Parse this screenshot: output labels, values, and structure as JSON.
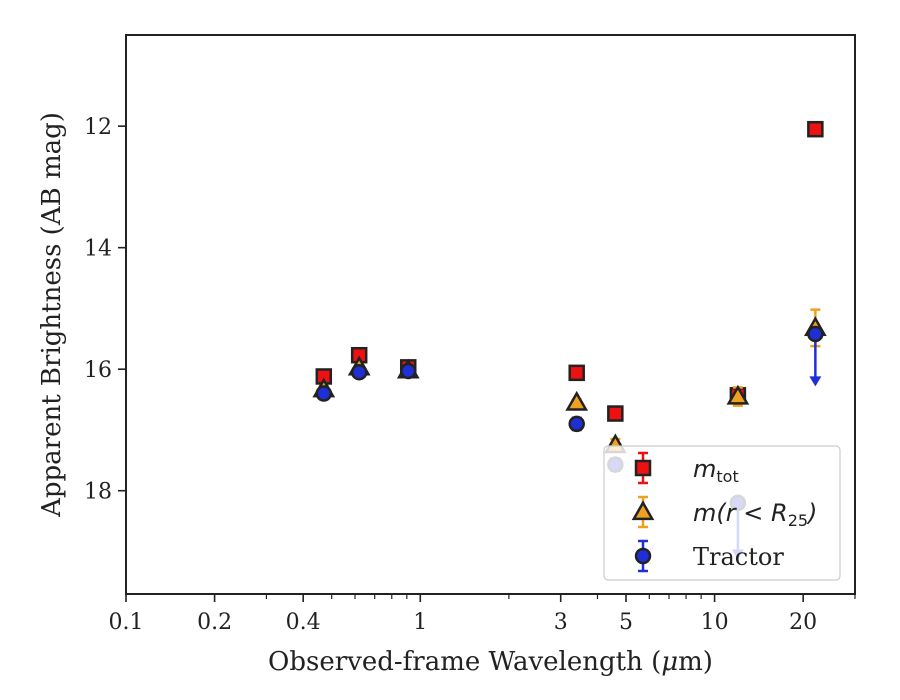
{
  "chart_data": {
    "type": "scatter",
    "xlabel_main": "Observed-frame Wavelength (",
    "xlabel_mu": "μ",
    "xlabel_rest": "m)",
    "ylabel": "Apparent Brightness (AB mag)",
    "xscale": "log",
    "xlim": [
      0.1,
      30
    ],
    "ylim": [
      19.7,
      10.5
    ],
    "y_inverted": true,
    "grid": false,
    "legend_position": "lower-right",
    "x_ticks": [
      0.1,
      0.2,
      0.4,
      1,
      3,
      5,
      10,
      20
    ],
    "x_tick_labels": [
      "0.1",
      "0.2",
      "0.4",
      "1",
      "3",
      "5",
      "10",
      "20"
    ],
    "y_ticks": [
      12,
      14,
      16,
      18
    ],
    "y_tick_labels": [
      "12",
      "14",
      "16",
      "18"
    ],
    "series": [
      {
        "legend_main": "m",
        "legend_sub": "tot",
        "marker": "square",
        "face_color": "#ee1111",
        "edge_color": "#222222",
        "err_color": "#ee1111",
        "points": [
          {
            "x": 0.47,
            "y": 16.12,
            "err": 0.05
          },
          {
            "x": 0.62,
            "y": 15.77,
            "err": 0.05
          },
          {
            "x": 0.91,
            "y": 15.97,
            "err": 0.05
          },
          {
            "x": 3.4,
            "y": 16.06,
            "err": 0.05
          },
          {
            "x": 4.6,
            "y": 16.73,
            "err": 0.05
          },
          {
            "x": 12.0,
            "y": 16.43,
            "err": 0.1
          },
          {
            "x": 22.0,
            "y": 12.05,
            "err": 0.05
          }
        ]
      },
      {
        "legend_prefix": "m(",
        "legend_var": "r",
        "legend_op": " < ",
        "legend_R": "R",
        "legend_sub": "25",
        "legend_suffix": ")",
        "marker": "triangle",
        "face_color": "#f0a020",
        "edge_color": "#222222",
        "err_color": "#f0a020",
        "points": [
          {
            "x": 0.47,
            "y": 16.33,
            "err": 0.05
          },
          {
            "x": 0.62,
            "y": 15.97,
            "err": 0.05
          },
          {
            "x": 0.91,
            "y": 16.02,
            "err": 0.05
          },
          {
            "x": 3.4,
            "y": 16.55,
            "err": 0.05
          },
          {
            "x": 4.6,
            "y": 17.25,
            "err": 0.1
          },
          {
            "x": 12.0,
            "y": 16.45,
            "err": 0.15
          },
          {
            "x": 22.0,
            "y": 15.32,
            "err": 0.3
          }
        ]
      },
      {
        "legend_main": "Tractor",
        "marker": "circle",
        "face_color": "#1f2fd6",
        "edge_color": "#222222",
        "err_color": "#1f2fd6",
        "points": [
          {
            "x": 0.47,
            "y": 16.4,
            "err": 0.05
          },
          {
            "x": 0.62,
            "y": 16.05,
            "err": 0.05
          },
          {
            "x": 0.91,
            "y": 16.03,
            "err": 0.05
          },
          {
            "x": 3.4,
            "y": 16.9,
            "err": 0.1
          },
          {
            "x": 4.6,
            "y": 17.57,
            "err": 0.1
          },
          {
            "x": 12.0,
            "y": 18.2,
            "upper_limit": true,
            "arrow_to": 19.1
          },
          {
            "x": 22.0,
            "y": 15.42,
            "upper_limit": true,
            "arrow_to": 16.25
          }
        ]
      }
    ]
  }
}
